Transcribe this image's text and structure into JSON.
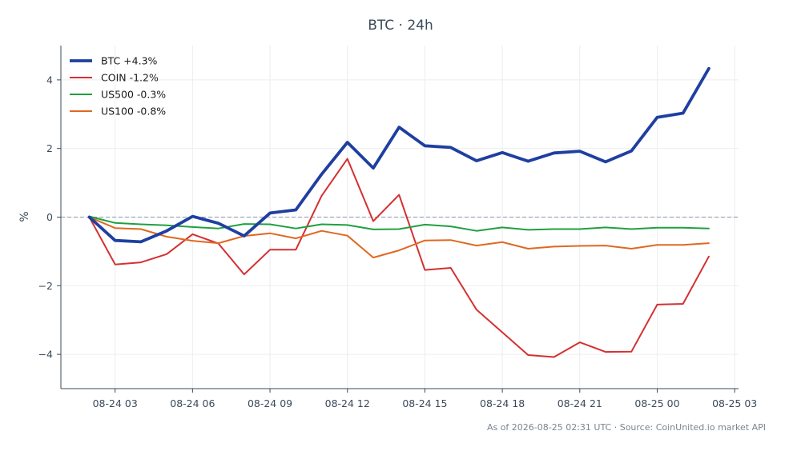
{
  "chart_data": {
    "type": "line",
    "title": "BTC · 24h",
    "xlabel": "",
    "ylabel": "%",
    "x_tick_labels": [
      "08-24 03",
      "08-24 06",
      "08-24 09",
      "08-24 12",
      "08-24 15",
      "08-24 18",
      "08-24 21",
      "08-25 00",
      "08-25 03"
    ],
    "x_tick_hours": [
      3,
      6,
      9,
      12,
      15,
      18,
      21,
      24,
      27
    ],
    "x_hours": [
      2,
      3,
      4,
      5,
      6,
      7,
      8,
      9,
      10,
      11,
      12,
      13,
      14,
      15,
      16,
      17,
      18,
      19,
      20,
      21,
      22,
      23,
      24,
      25,
      26
    ],
    "y_ticks": [
      -4,
      -2,
      0,
      2,
      4
    ],
    "y_tick_labels": [
      "−4",
      "−2",
      "0",
      "2",
      "4"
    ],
    "xlim": [
      0.9,
      27.15
    ],
    "ylim": [
      -5.0,
      5.0
    ],
    "grid": true,
    "zero_line": true,
    "legend_position": "top-left",
    "series": [
      {
        "name": "BTC +4.3%",
        "color": "#1f3fa0",
        "values": [
          0.0,
          -0.68,
          -0.72,
          -0.4,
          0.02,
          -0.18,
          -0.55,
          0.12,
          0.21,
          1.25,
          2.18,
          1.43,
          2.62,
          2.08,
          2.03,
          1.64,
          1.88,
          1.63,
          1.87,
          1.92,
          1.61,
          1.93,
          2.91,
          3.03,
          4.33
        ]
      },
      {
        "name": "COIN -1.2%",
        "color": "#d43030",
        "values": [
          0.0,
          -1.38,
          -1.32,
          -1.08,
          -0.5,
          -0.77,
          -1.67,
          -0.95,
          -0.95,
          0.62,
          1.7,
          -0.12,
          0.65,
          -1.54,
          -1.48,
          -2.7,
          -3.36,
          -4.02,
          -4.08,
          -3.65,
          -3.93,
          -3.92,
          -2.55,
          -2.53,
          -1.15
        ]
      },
      {
        "name": "US500 -0.3%",
        "color": "#1fa040",
        "values": [
          0.02,
          -0.17,
          -0.21,
          -0.24,
          -0.29,
          -0.33,
          -0.2,
          -0.21,
          -0.33,
          -0.21,
          -0.23,
          -0.36,
          -0.35,
          -0.22,
          -0.27,
          -0.4,
          -0.3,
          -0.37,
          -0.35,
          -0.35,
          -0.3,
          -0.35,
          -0.31,
          -0.31,
          -0.33
        ]
      },
      {
        "name": "US100 -0.8%",
        "color": "#e06820",
        "values": [
          0.0,
          -0.32,
          -0.35,
          -0.57,
          -0.69,
          -0.76,
          -0.55,
          -0.47,
          -0.62,
          -0.4,
          -0.54,
          -1.18,
          -0.97,
          -0.68,
          -0.67,
          -0.83,
          -0.73,
          -0.92,
          -0.86,
          -0.84,
          -0.83,
          -0.92,
          -0.81,
          -0.81,
          -0.76
        ]
      }
    ]
  },
  "footer": {
    "source_text": "As of 2026-08-25 02:31 UTC · Source: CoinUnited.io market API"
  }
}
